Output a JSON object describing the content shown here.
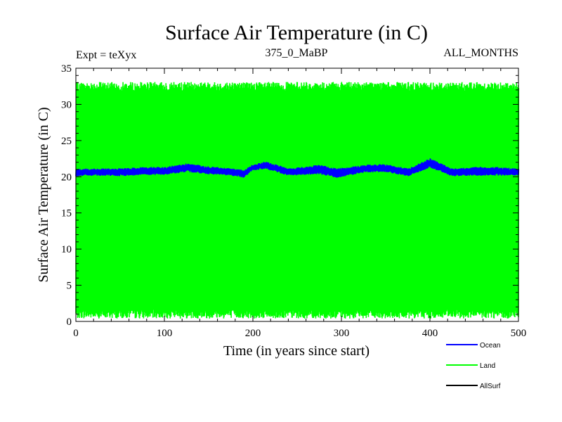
{
  "chart_data": {
    "type": "line",
    "title": "Surface Air Temperature (in C)",
    "subtitle_left": "Expt = teXyx",
    "subtitle_center": "375_0_MaBP",
    "subtitle_right": "ALL_MONTHS",
    "xlabel": "Time (in years since start)",
    "ylabel": "Surface Air Temperature (in C)",
    "xlim": [
      0,
      500
    ],
    "ylim": [
      0,
      35
    ],
    "xticks": [
      0,
      100,
      200,
      300,
      400,
      500
    ],
    "yticks": [
      0,
      5,
      10,
      15,
      20,
      25,
      30,
      35
    ],
    "grid": false,
    "legend_position": "bottom-right",
    "series": [
      {
        "name": "Ocean",
        "color": "#0000ff",
        "style": "seasonal band",
        "x": [
          0,
          25,
          50,
          75,
          100,
          125,
          150,
          175,
          190,
          200,
          215,
          240,
          275,
          295,
          325,
          350,
          375,
          400,
          425,
          450,
          475,
          500
        ],
        "low": [
          20.2,
          20.3,
          20.2,
          20.4,
          20.4,
          20.8,
          20.5,
          20.3,
          20.0,
          21.0,
          21.2,
          20.3,
          20.5,
          20.0,
          20.7,
          20.8,
          20.2,
          21.4,
          20.2,
          20.3,
          20.3,
          20.3
        ],
        "high": [
          21.0,
          21.0,
          21.0,
          21.2,
          21.2,
          21.7,
          21.3,
          21.0,
          20.8,
          21.6,
          22.0,
          21.0,
          21.5,
          21.0,
          21.5,
          21.6,
          21.0,
          22.4,
          21.0,
          21.2,
          21.2,
          21.0
        ]
      },
      {
        "name": "Land",
        "color": "#00ff00",
        "style": "seasonal band",
        "x": [
          0,
          500
        ],
        "low": [
          1.0,
          1.0
        ],
        "high": [
          32.5,
          32.5
        ]
      },
      {
        "name": "AllSurf",
        "color": "#000000",
        "style": "line",
        "x": [],
        "y": []
      }
    ]
  }
}
